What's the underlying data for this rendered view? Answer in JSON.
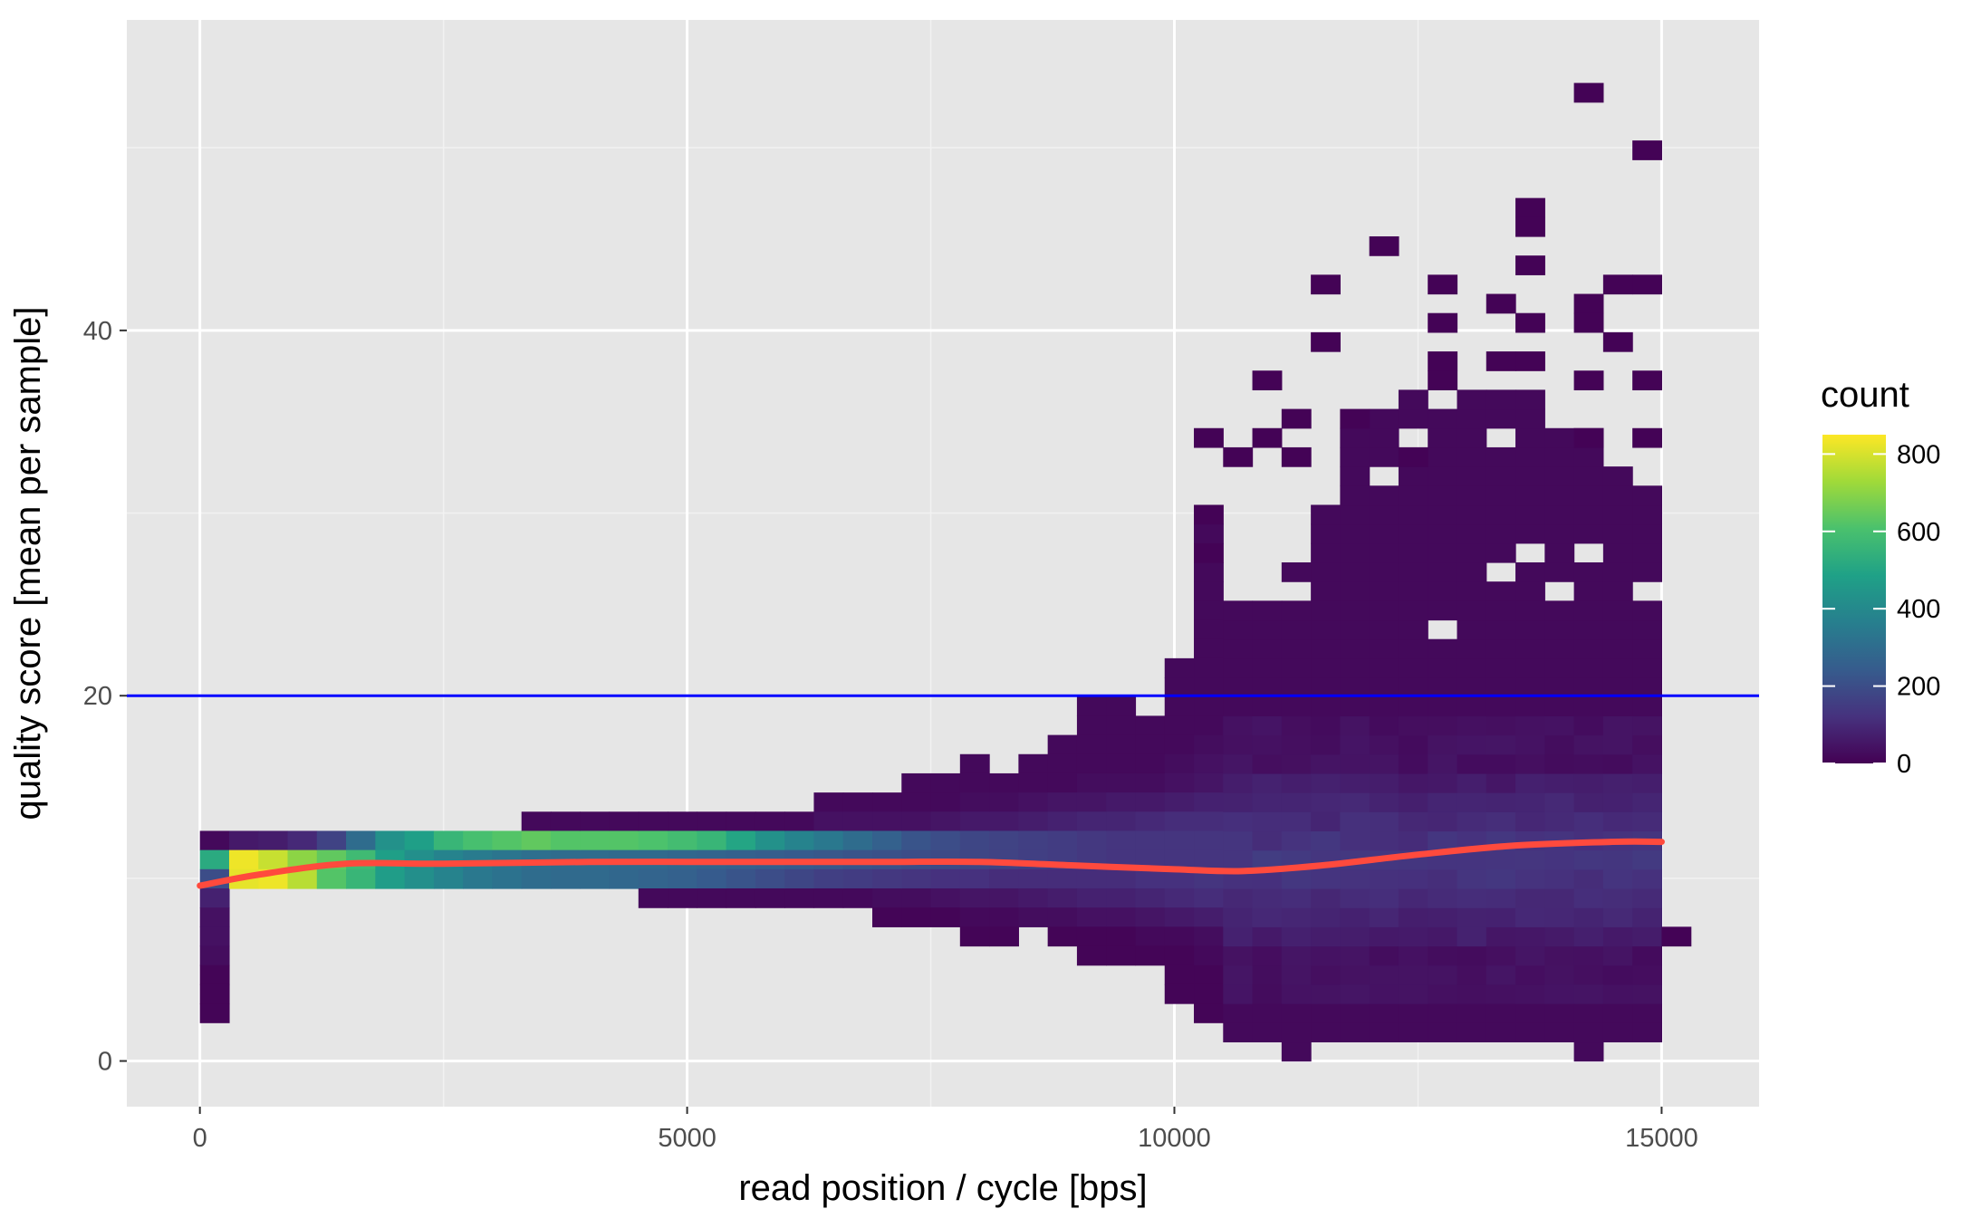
{
  "chart_data": {
    "type": "heatmap",
    "xlabel": "read position / cycle [bps]",
    "ylabel": "quality score [mean per sample]",
    "xlim": [
      -750,
      16000
    ],
    "ylim": [
      -2.5,
      57
    ],
    "x_ticks": [
      0,
      5000,
      10000,
      15000
    ],
    "y_ticks": [
      0,
      20,
      40
    ],
    "grid": true,
    "bin_width": 300,
    "bin_height": 1.05,
    "threshold": {
      "y": 20,
      "color": "#0000ff"
    },
    "smooth_line": {
      "color": "#ff4a3d",
      "points": [
        [
          0,
          9.6
        ],
        [
          600,
          10.2
        ],
        [
          1500,
          10.8
        ],
        [
          2500,
          10.8
        ],
        [
          4000,
          10.9
        ],
        [
          5000,
          10.9
        ],
        [
          6000,
          10.9
        ],
        [
          7000,
          10.9
        ],
        [
          8000,
          10.9
        ],
        [
          9000,
          10.7
        ],
        [
          10000,
          10.5
        ],
        [
          10700,
          10.4
        ],
        [
          11500,
          10.7
        ],
        [
          12500,
          11.3
        ],
        [
          13500,
          11.8
        ],
        [
          14500,
          12.0
        ],
        [
          15000,
          12.0
        ]
      ]
    },
    "legend": {
      "title": "count",
      "ticks": [
        0,
        200,
        400,
        600,
        800
      ],
      "max": 850,
      "placement": "right",
      "colors": [
        "#440154",
        "#46327e",
        "#365c8d",
        "#277f8e",
        "#1fa187",
        "#4ac16d",
        "#a0da39",
        "#fde725"
      ]
    },
    "cells": [
      [
        0,
        11,
        20
      ],
      [
        0,
        10,
        520
      ],
      [
        0,
        9,
        200
      ],
      [
        0,
        8,
        80
      ],
      [
        0,
        7,
        40
      ],
      [
        0,
        6,
        40
      ],
      [
        0,
        5,
        30
      ],
      [
        0,
        4,
        10
      ],
      [
        0,
        3,
        10
      ],
      [
        0,
        2,
        10
      ],
      [
        300,
        11,
        60
      ],
      [
        300,
        10,
        830
      ],
      [
        300,
        9,
        820
      ],
      [
        600,
        11,
        70
      ],
      [
        600,
        10,
        780
      ],
      [
        600,
        9,
        830
      ],
      [
        900,
        11,
        100
      ],
      [
        900,
        10,
        700
      ],
      [
        900,
        9,
        760
      ],
      [
        1200,
        11,
        170
      ],
      [
        1200,
        10,
        640
      ],
      [
        1200,
        9,
        620
      ],
      [
        1500,
        11,
        300
      ],
      [
        1500,
        10,
        580
      ],
      [
        1500,
        9,
        560
      ],
      [
        1800,
        11,
        430
      ],
      [
        1800,
        10,
        480
      ],
      [
        1800,
        9,
        470
      ],
      [
        2100,
        11,
        480
      ],
      [
        2100,
        10,
        420
      ],
      [
        2100,
        9,
        420
      ],
      [
        2400,
        11,
        560
      ],
      [
        2400,
        10,
        380
      ],
      [
        2400,
        9,
        380
      ],
      [
        2700,
        11,
        600
      ],
      [
        2700,
        10,
        350
      ],
      [
        2700,
        9,
        340
      ],
      [
        3000,
        11,
        620
      ],
      [
        3000,
        10,
        330
      ],
      [
        3000,
        9,
        320
      ],
      [
        3300,
        12,
        20
      ],
      [
        3300,
        11,
        640
      ],
      [
        3300,
        10,
        310
      ],
      [
        3300,
        9,
        300
      ],
      [
        3600,
        12,
        20
      ],
      [
        3600,
        11,
        620
      ],
      [
        3600,
        10,
        300
      ],
      [
        3600,
        9,
        290
      ],
      [
        3900,
        12,
        20
      ],
      [
        3900,
        11,
        620
      ],
      [
        3900,
        10,
        300
      ],
      [
        3900,
        9,
        290
      ],
      [
        4200,
        12,
        20
      ],
      [
        4200,
        11,
        620
      ],
      [
        4200,
        10,
        290
      ],
      [
        4200,
        9,
        280
      ],
      [
        4500,
        12,
        20
      ],
      [
        4500,
        11,
        610
      ],
      [
        4500,
        10,
        290
      ],
      [
        4500,
        9,
        270
      ],
      [
        4500,
        8,
        20
      ],
      [
        4800,
        12,
        20
      ],
      [
        4800,
        11,
        590
      ],
      [
        4800,
        10,
        280
      ],
      [
        4800,
        9,
        260
      ],
      [
        4800,
        8,
        20
      ],
      [
        5100,
        12,
        20
      ],
      [
        5100,
        11,
        560
      ],
      [
        5100,
        10,
        270
      ],
      [
        5100,
        9,
        240
      ],
      [
        5100,
        8,
        20
      ],
      [
        5400,
        12,
        20
      ],
      [
        5400,
        11,
        500
      ],
      [
        5400,
        10,
        260
      ],
      [
        5400,
        9,
        220
      ],
      [
        5400,
        8,
        20
      ],
      [
        5700,
        12,
        20
      ],
      [
        5700,
        11,
        430
      ],
      [
        5700,
        10,
        250
      ],
      [
        5700,
        9,
        200
      ],
      [
        5700,
        8,
        20
      ],
      [
        6000,
        12,
        20
      ],
      [
        6000,
        11,
        380
      ],
      [
        6000,
        10,
        240
      ],
      [
        6000,
        9,
        180
      ],
      [
        6000,
        8,
        20
      ],
      [
        6300,
        13,
        20
      ],
      [
        6300,
        12,
        40
      ],
      [
        6300,
        11,
        340
      ],
      [
        6300,
        10,
        230
      ],
      [
        6300,
        9,
        160
      ],
      [
        6300,
        8,
        20
      ],
      [
        6600,
        13,
        20
      ],
      [
        6600,
        12,
        40
      ],
      [
        6600,
        11,
        300
      ],
      [
        6600,
        10,
        220
      ],
      [
        6600,
        9,
        150
      ],
      [
        6600,
        8,
        20
      ],
      [
        6900,
        13,
        20
      ],
      [
        6900,
        12,
        40
      ],
      [
        6900,
        11,
        260
      ],
      [
        6900,
        10,
        210
      ],
      [
        6900,
        9,
        140
      ],
      [
        6900,
        8,
        30
      ],
      [
        6900,
        7,
        10
      ],
      [
        7200,
        14,
        20
      ],
      [
        7200,
        13,
        20
      ],
      [
        7200,
        12,
        40
      ],
      [
        7200,
        11,
        220
      ],
      [
        7200,
        10,
        200
      ],
      [
        7200,
        9,
        130
      ],
      [
        7200,
        8,
        30
      ],
      [
        7200,
        7,
        10
      ],
      [
        7500,
        14,
        20
      ],
      [
        7500,
        13,
        20
      ],
      [
        7500,
        12,
        50
      ],
      [
        7500,
        11,
        200
      ],
      [
        7500,
        10,
        190
      ],
      [
        7500,
        9,
        120
      ],
      [
        7500,
        8,
        40
      ],
      [
        7500,
        7,
        10
      ],
      [
        7800,
        15,
        20
      ],
      [
        7800,
        14,
        20
      ],
      [
        7800,
        13,
        30
      ],
      [
        7800,
        12,
        60
      ],
      [
        7800,
        11,
        180
      ],
      [
        7800,
        10,
        180
      ],
      [
        7800,
        9,
        120
      ],
      [
        7800,
        8,
        50
      ],
      [
        7800,
        7,
        20
      ],
      [
        7800,
        6,
        10
      ],
      [
        8100,
        14,
        20
      ],
      [
        8100,
        13,
        30
      ],
      [
        8100,
        12,
        60
      ],
      [
        8100,
        11,
        170
      ],
      [
        8100,
        10,
        170
      ],
      [
        8100,
        9,
        110
      ],
      [
        8100,
        8,
        50
      ],
      [
        8100,
        7,
        20
      ],
      [
        8100,
        6,
        10
      ],
      [
        8400,
        15,
        20
      ],
      [
        8400,
        14,
        20
      ],
      [
        8400,
        13,
        40
      ],
      [
        8400,
        12,
        70
      ],
      [
        8400,
        11,
        160
      ],
      [
        8400,
        10,
        160
      ],
      [
        8400,
        9,
        110
      ],
      [
        8400,
        8,
        60
      ],
      [
        8400,
        7,
        30
      ],
      [
        8700,
        16,
        20
      ],
      [
        8700,
        15,
        20
      ],
      [
        8700,
        14,
        20
      ],
      [
        8700,
        13,
        50
      ],
      [
        8700,
        12,
        80
      ],
      [
        8700,
        11,
        150
      ],
      [
        8700,
        10,
        150
      ],
      [
        8700,
        9,
        110
      ],
      [
        8700,
        8,
        70
      ],
      [
        8700,
        7,
        30
      ],
      [
        8700,
        6,
        10
      ],
      [
        9000,
        18,
        20
      ],
      [
        9000,
        17,
        20
      ],
      [
        9000,
        16,
        20
      ],
      [
        9000,
        15,
        20
      ],
      [
        9000,
        14,
        30
      ],
      [
        9000,
        13,
        50
      ],
      [
        9000,
        12,
        90
      ],
      [
        9000,
        11,
        140
      ],
      [
        9000,
        10,
        140
      ],
      [
        9000,
        9,
        110
      ],
      [
        9000,
        8,
        80
      ],
      [
        9000,
        7,
        40
      ],
      [
        9000,
        6,
        10
      ],
      [
        9000,
        5,
        10
      ],
      [
        9300,
        18,
        20
      ],
      [
        9300,
        17,
        20
      ],
      [
        9300,
        16,
        20
      ],
      [
        9300,
        15,
        20
      ],
      [
        9300,
        14,
        30
      ],
      [
        9300,
        13,
        60
      ],
      [
        9300,
        12,
        90
      ],
      [
        9300,
        11,
        130
      ],
      [
        9300,
        10,
        130
      ],
      [
        9300,
        9,
        110
      ],
      [
        9300,
        8,
        80
      ],
      [
        9300,
        7,
        40
      ],
      [
        9300,
        6,
        10
      ],
      [
        9300,
        5,
        10
      ],
      [
        9600,
        17,
        20
      ],
      [
        9600,
        16,
        20
      ],
      [
        9600,
        15,
        20
      ],
      [
        9600,
        14,
        30
      ],
      [
        9600,
        13,
        60
      ],
      [
        9600,
        12,
        100
      ],
      [
        9600,
        11,
        130
      ],
      [
        9600,
        10,
        130
      ],
      [
        9600,
        9,
        120
      ],
      [
        9600,
        8,
        90
      ],
      [
        9600,
        7,
        50
      ],
      [
        9600,
        6,
        20
      ],
      [
        9600,
        5,
        10
      ],
      [
        9900,
        20,
        20
      ],
      [
        9900,
        19,
        20
      ],
      [
        9900,
        18,
        20
      ],
      [
        9900,
        17,
        20
      ],
      [
        9900,
        16,
        20
      ],
      [
        9900,
        15,
        30
      ],
      [
        9900,
        14,
        40
      ],
      [
        9900,
        13,
        70
      ],
      [
        9900,
        12,
        110
      ],
      [
        9900,
        11,
        130
      ],
      [
        9900,
        10,
        130
      ],
      [
        9900,
        9,
        120
      ],
      [
        9900,
        8,
        100
      ],
      [
        9900,
        7,
        60
      ],
      [
        9900,
        6,
        20
      ],
      [
        9900,
        5,
        10
      ],
      [
        9900,
        4,
        10
      ],
      [
        9900,
        3,
        10
      ],
      [
        10200,
        27,
        20
      ],
      [
        10200,
        25,
        20
      ],
      [
        10200,
        24,
        20
      ],
      [
        10200,
        23,
        20
      ],
      [
        10200,
        22,
        20
      ],
      [
        10200,
        21,
        20
      ],
      [
        10200,
        20,
        20
      ],
      [
        10200,
        19,
        20
      ],
      [
        10200,
        18,
        20
      ],
      [
        10200,
        17,
        20
      ],
      [
        10200,
        16,
        30
      ],
      [
        10200,
        15,
        40
      ],
      [
        10200,
        14,
        50
      ],
      [
        10200,
        13,
        80
      ],
      [
        10200,
        12,
        110
      ],
      [
        10200,
        11,
        130
      ],
      [
        10200,
        10,
        130
      ],
      [
        10200,
        9,
        130
      ],
      [
        10200,
        8,
        110
      ],
      [
        10200,
        7,
        70
      ],
      [
        10200,
        6,
        30
      ],
      [
        10200,
        5,
        20
      ],
      [
        10200,
        4,
        10
      ],
      [
        10200,
        3,
        10
      ],
      [
        10200,
        2,
        10
      ]
    ]
  }
}
